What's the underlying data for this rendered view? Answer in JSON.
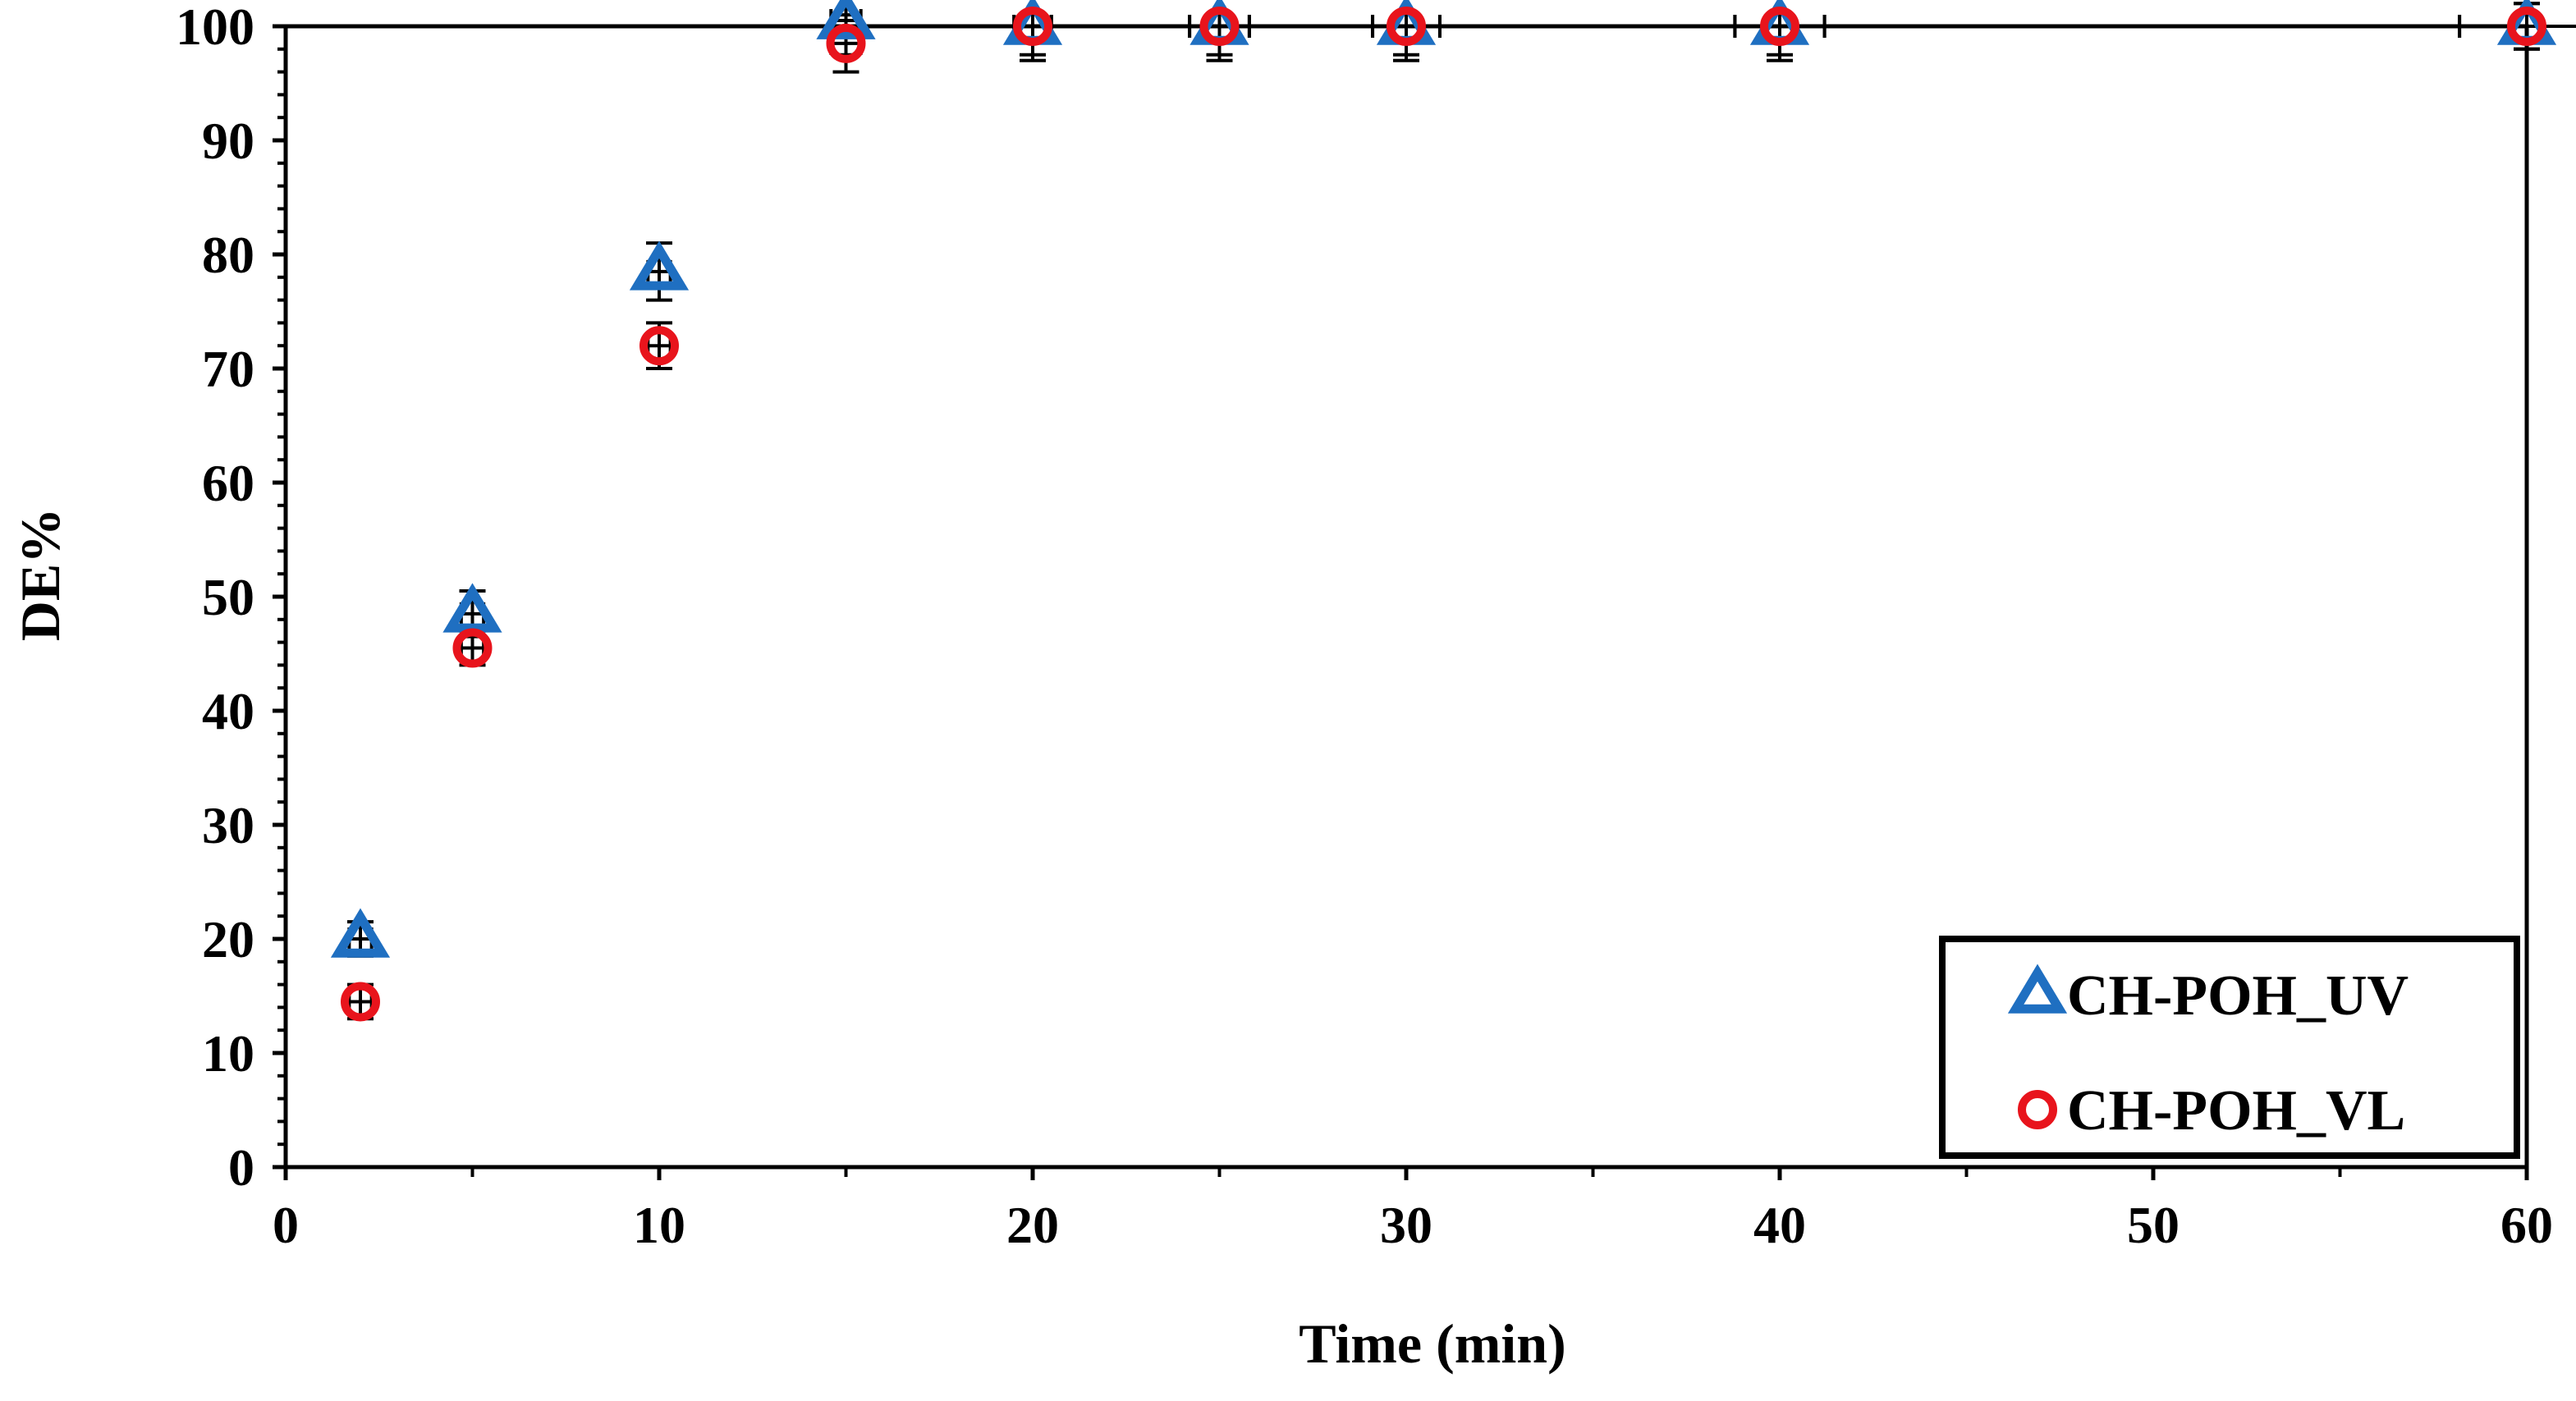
{
  "chart_data": {
    "type": "scatter",
    "title": "",
    "xlabel": "Time (min)",
    "ylabel": "DE%",
    "xlim": [
      0,
      60
    ],
    "ylim": [
      0,
      100
    ],
    "x_ticks": [
      0,
      10,
      20,
      30,
      40,
      50,
      60
    ],
    "y_ticks": [
      0,
      10,
      20,
      30,
      40,
      50,
      60,
      70,
      80,
      90,
      100
    ],
    "grid": false,
    "legend_position": "bottom-right",
    "series": [
      {
        "name": "CH-POH_UV",
        "marker": "triangle",
        "color": "#1f6fc1",
        "x": [
          2,
          5,
          10,
          15,
          20,
          25,
          30,
          40,
          60
        ],
        "y": [
          20,
          48.5,
          78.5,
          100.5,
          100,
          100,
          100,
          100,
          100
        ],
        "y_err": [
          1.5,
          2,
          2.5,
          3,
          3,
          3,
          3,
          3,
          2
        ],
        "x_err": [
          0.3,
          0.3,
          0.3,
          0.4,
          0.5,
          0.8,
          0.9,
          1.2,
          1.8
        ]
      },
      {
        "name": "CH-POH_VL",
        "marker": "circle",
        "color": "#e8141c",
        "x": [
          2,
          5,
          10,
          15,
          20,
          25,
          30,
          40,
          60
        ],
        "y": [
          14.5,
          45.5,
          72,
          98.5,
          100,
          100,
          100,
          100,
          100
        ],
        "y_err": [
          1.5,
          1.5,
          2,
          2.5,
          2.5,
          2.5,
          2.5,
          2.5,
          2
        ],
        "x_err": [
          0.3,
          0.3,
          0.3,
          0.4,
          0.5,
          0.8,
          0.9,
          1.2,
          1.8
        ]
      }
    ]
  }
}
